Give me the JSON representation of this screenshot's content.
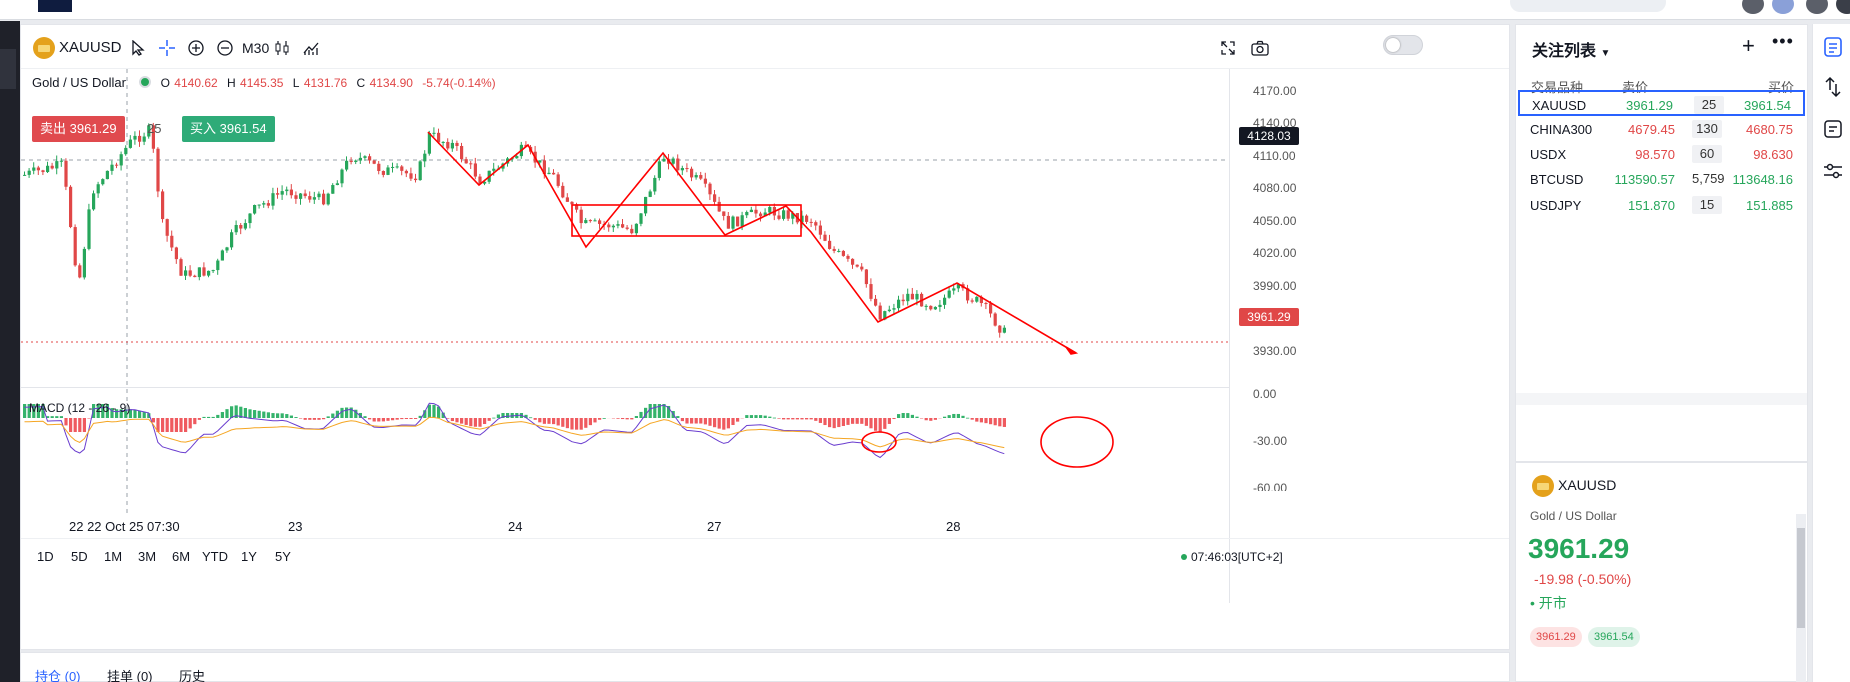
{
  "symbol": {
    "code": "XAUUSD",
    "description": "Gold / US Dollar",
    "interval": "M30",
    "ohlc": {
      "o_label": "O",
      "o": "4140.62",
      "h_label": "H",
      "h": "4145.35",
      "l_label": "L",
      "l": "4131.76",
      "c_label": "C",
      "c": "4134.90",
      "change": "-5.74(-0.14%)"
    }
  },
  "trade": {
    "sell_label": "卖出 3961.29",
    "spread": "25",
    "buy_label": "买入 3961.54"
  },
  "y_axis": {
    "ticks": [
      "4170.00",
      "4140.00",
      "4110.00",
      "4080.00",
      "4050.00",
      "4020.00",
      "3990.00",
      "3960.00",
      "3930.00"
    ],
    "crosshair_price": "4128.03",
    "last_price": "3961.29",
    "macd_ticks": [
      "0.00",
      "-30.00",
      "-60.00"
    ]
  },
  "x_axis": {
    "crosshair_label": "22 22 Oct 25 07:30",
    "labels": [
      "23",
      "24",
      "27",
      "28"
    ]
  },
  "macd": {
    "label": "MACD (12 - 26 - 9)"
  },
  "timeframes": [
    "1D",
    "5D",
    "1M",
    "3M",
    "6M",
    "YTD",
    "1Y",
    "5Y"
  ],
  "clock": "07:46:03[UTC+2]",
  "bottom_tabs": [
    "持仓 (0)",
    "挂单 (0)",
    "历史"
  ],
  "watchlist": {
    "title": "关注列表",
    "headers": {
      "symbol": "交易品种",
      "bid": "卖价",
      "ask": "买价"
    },
    "rows": [
      {
        "symbol": "XAUUSD",
        "bid": "3961.29",
        "spread": "25",
        "ask": "3961.54",
        "bid_color": "green",
        "ask_color": "green"
      },
      {
        "symbol": "CHINA300",
        "bid": "4679.45",
        "spread": "130",
        "ask": "4680.75",
        "bid_color": "red",
        "ask_color": "red"
      },
      {
        "symbol": "USDX",
        "bid": "98.570",
        "spread": "60",
        "ask": "98.630",
        "bid_color": "red",
        "ask_color": "red"
      },
      {
        "symbol": "BTCUSD",
        "bid": "113590.57",
        "spread": "5,759",
        "ask": "113648.16",
        "bid_color": "green",
        "ask_color": "green"
      },
      {
        "symbol": "USDJPY",
        "bid": "151.870",
        "spread": "15",
        "ask": "151.885",
        "bid_color": "green",
        "ask_color": "green"
      }
    ]
  },
  "detail": {
    "symbol": "XAUUSD",
    "description": "Gold / US Dollar",
    "price": "3961.29",
    "change": "-19.98 (-0.50%)",
    "status": "• 开市",
    "bid": "3961.29",
    "ask": "3961.54"
  },
  "colors": {
    "up": "#26a65b",
    "down": "#e04747",
    "annotation": "#ff0000",
    "fast_line": "#6a3dcf",
    "slow_line": "#f5a623"
  },
  "icons": [
    "cursor-icon",
    "crosshair-icon",
    "zoom-in-icon",
    "zoom-out-icon",
    "candles-icon",
    "indicators-icon",
    "fullscreen-icon",
    "camera-icon",
    "plus-icon",
    "more-icon",
    "watchlist-icon",
    "alerts-icon",
    "calendar-icon",
    "settings-icon"
  ]
}
